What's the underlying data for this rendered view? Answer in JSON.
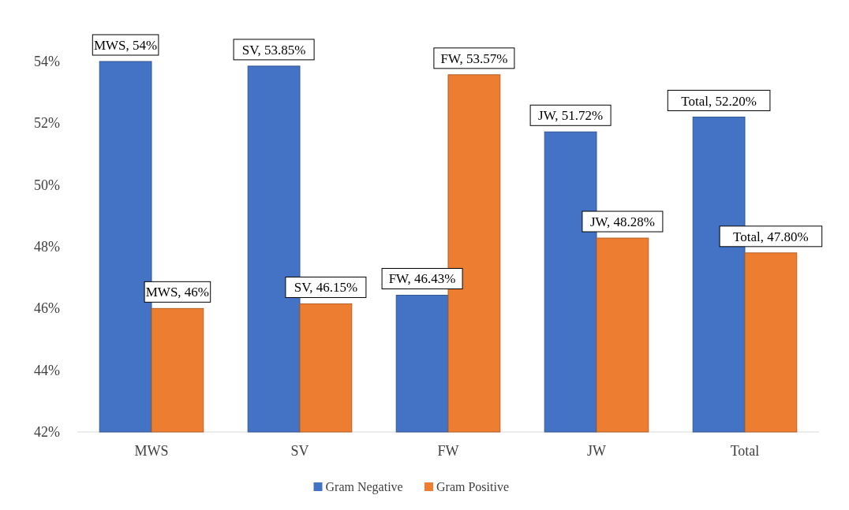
{
  "chart_data": {
    "type": "bar",
    "categories": [
      "MWS",
      "SV",
      "FW",
      "JW",
      "Total"
    ],
    "series": [
      {
        "name": "Gram Negative",
        "color": "#4472c4",
        "values": [
          54,
          53.85,
          46.43,
          51.72,
          52.2
        ],
        "value_labels": [
          "MWS, 54%",
          "SV, 53.85%",
          "FW, 46.43%",
          "JW, 51.72%",
          "Total, 52.20%"
        ]
      },
      {
        "name": "Gram Positive",
        "color": "#ed7d31",
        "values": [
          46,
          46.15,
          53.57,
          48.28,
          47.8
        ],
        "value_labels": [
          "MWS, 46%",
          "SV, 46.15%",
          "FW, 53.57%",
          "JW, 48.28%",
          "Total, 47.80%"
        ]
      }
    ],
    "ylim": [
      42,
      54
    ],
    "yticks": [
      {
        "value": 42,
        "label": "42%"
      },
      {
        "value": 44,
        "label": "44%"
      },
      {
        "value": 46,
        "label": "46%"
      },
      {
        "value": 48,
        "label": "48%"
      },
      {
        "value": 50,
        "label": "50%"
      },
      {
        "value": 52,
        "label": "52%"
      },
      {
        "value": 54,
        "label": "54%"
      }
    ],
    "grid": false,
    "legend": "bottom"
  }
}
